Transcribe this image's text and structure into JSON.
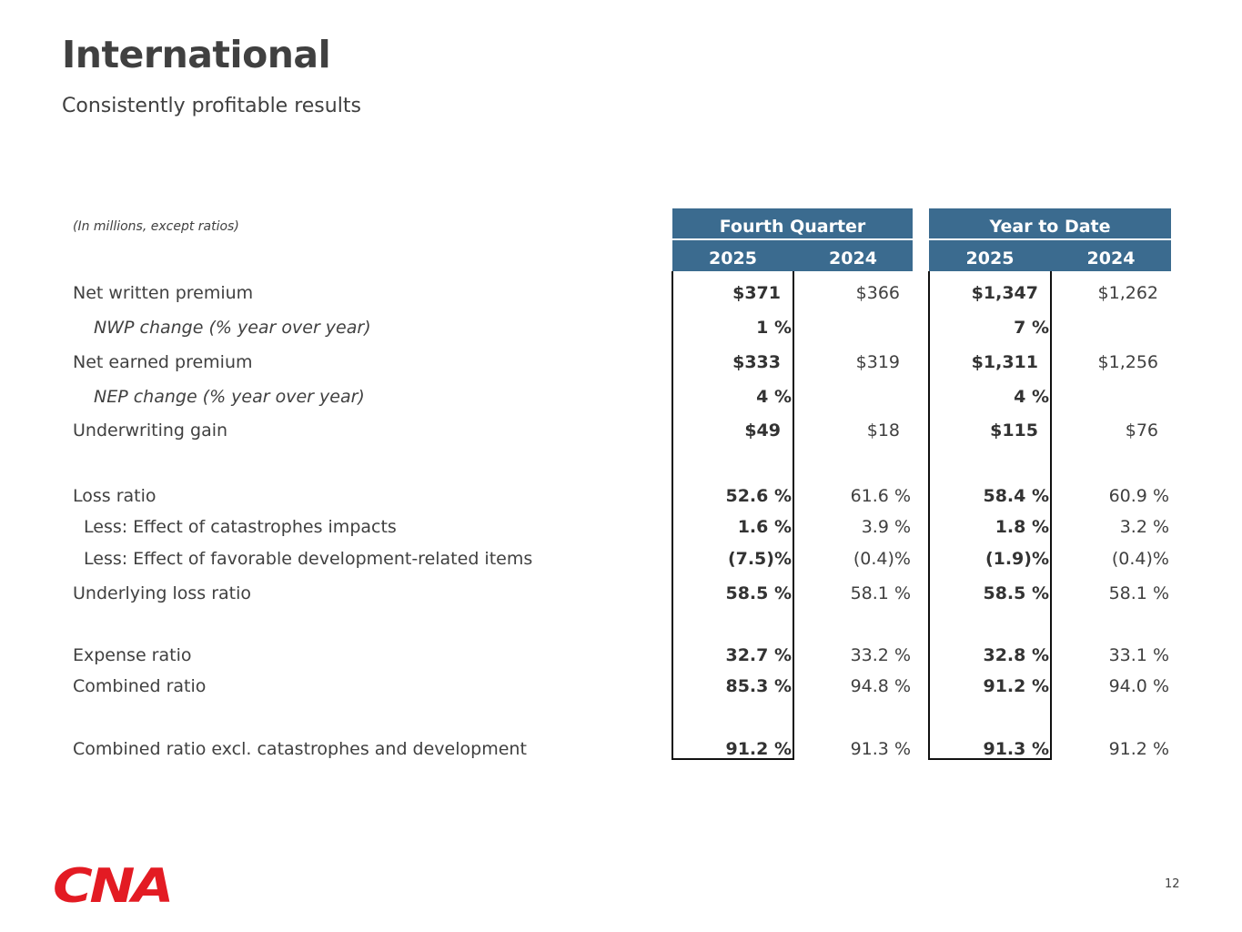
{
  "title": "International",
  "subtitle": "Consistently profitable results",
  "note": "(In millions, except ratios)",
  "headers": {
    "q": "Fourth Quarter",
    "ytd": "Year to Date",
    "y1": "2025",
    "y2": "2024"
  },
  "rows": [
    {
      "label": "Net written premium",
      "style": "main",
      "type": "dollar",
      "q25": "$371",
      "q24": "$366",
      "y25": "$1,347",
      "y24": "$1,262"
    },
    {
      "label": "NWP change (% year over year)",
      "style": "italic",
      "type": "pct",
      "q25": "1 %",
      "q24": "",
      "y25": "7 %",
      "y24": ""
    },
    {
      "label": "Net earned premium",
      "style": "main",
      "type": "dollar",
      "q25": "$333",
      "q24": "$319",
      "y25": "$1,311",
      "y24": "$1,256"
    },
    {
      "label": "NEP change (% year over year)",
      "style": "italic",
      "type": "pct",
      "q25": "4 %",
      "q24": "",
      "y25": "4 %",
      "y24": ""
    },
    {
      "label": "Underwriting gain",
      "style": "main",
      "type": "dollar",
      "q25": "$49",
      "q24": "$18",
      "y25": "$115",
      "y24": "$76"
    },
    {
      "label": "Loss ratio",
      "style": "main",
      "type": "pct",
      "q25": "52.6 %",
      "q24": "61.6 %",
      "y25": "58.4 %",
      "y24": "60.9 %"
    },
    {
      "label": "Less: Effect of catastrophes impacts",
      "style": "less",
      "type": "pct",
      "q25": "1.6 %",
      "q24": "3.9 %",
      "y25": "1.8 %",
      "y24": "3.2 %"
    },
    {
      "label": "Less: Effect of favorable development-related items",
      "style": "less",
      "type": "pct",
      "q25": "(7.5)%",
      "q24": "(0.4)%",
      "y25": "(1.9)%",
      "y24": "(0.4)%"
    },
    {
      "label": "Underlying loss ratio",
      "style": "main",
      "type": "pct",
      "q25": "58.5 %",
      "q24": "58.1 %",
      "y25": "58.5 %",
      "y24": "58.1 %"
    },
    {
      "label": "Expense ratio",
      "style": "main",
      "type": "pct",
      "q25": "32.7 %",
      "q24": "33.2 %",
      "y25": "32.8 %",
      "y24": "33.1 %"
    },
    {
      "label": "Combined ratio",
      "style": "main",
      "type": "pct",
      "q25": "85.3 %",
      "q24": "94.8 %",
      "y25": "91.2 %",
      "y24": "94.0 %"
    },
    {
      "label": "Combined ratio excl. catastrophes and development",
      "style": "main",
      "type": "pct",
      "q25": "91.2 %",
      "q24": "91.3 %",
      "y25": "91.3 %",
      "y24": "91.2 %"
    }
  ],
  "logo_text": "CNA",
  "page_number": "12"
}
